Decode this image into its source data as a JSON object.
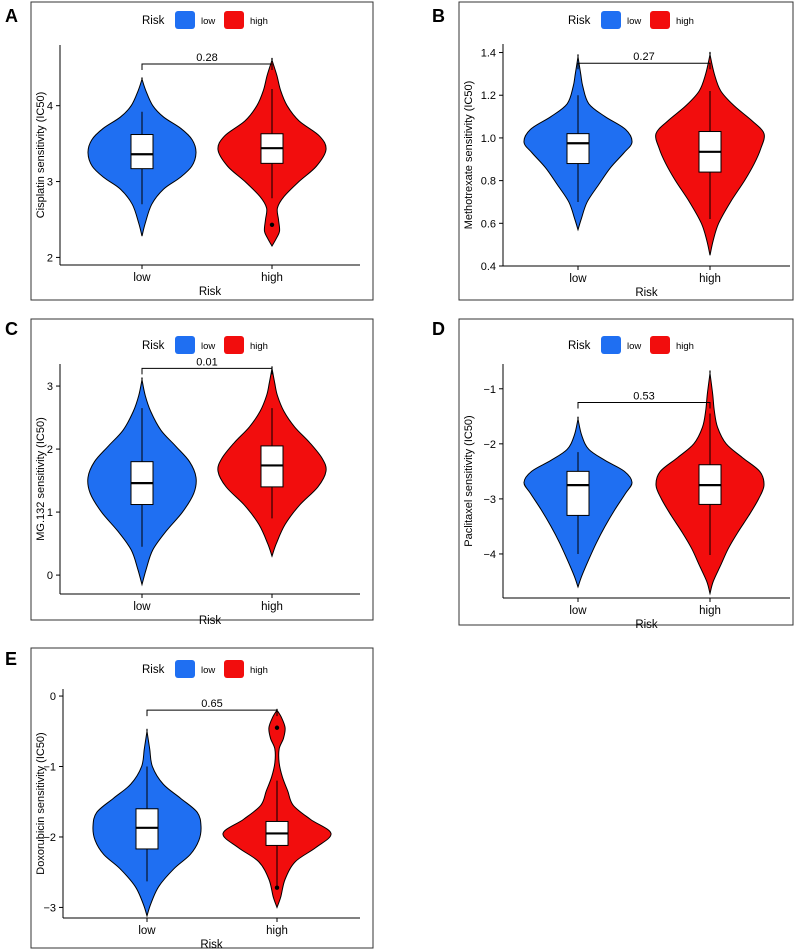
{
  "legend": {
    "title": "Risk",
    "low_label": "low",
    "high_label": "high"
  },
  "colors": {
    "low": "#1f6ff2",
    "high": "#f20d0d",
    "box": "#ffffff",
    "line": "#000000",
    "frame": "#333333"
  },
  "chart_data": [
    {
      "panel_letter": "A",
      "type": "violin",
      "xlabel": "Risk",
      "ylabel": "Cisplatin sensitivity (IC50)",
      "categories": [
        "low",
        "high"
      ],
      "ylim": [
        1.9,
        4.8
      ],
      "yticks": [
        2,
        3,
        4
      ],
      "pvalue": "0.28",
      "bracket_y": 4.55,
      "series": [
        {
          "name": "low",
          "min": 2.28,
          "max": 4.35,
          "q1": 3.17,
          "median": 3.36,
          "q3": 3.62,
          "whisker_low": 2.7,
          "whisker_high": 3.92,
          "outliers": [],
          "density": [
            [
              2.28,
              0
            ],
            [
              2.45,
              0.06
            ],
            [
              2.7,
              0.18
            ],
            [
              2.9,
              0.4
            ],
            [
              3.05,
              0.7
            ],
            [
              3.2,
              0.92
            ],
            [
              3.38,
              1.0
            ],
            [
              3.55,
              0.93
            ],
            [
              3.7,
              0.72
            ],
            [
              3.85,
              0.4
            ],
            [
              4.0,
              0.2
            ],
            [
              4.2,
              0.07
            ],
            [
              4.35,
              0
            ]
          ]
        },
        {
          "name": "high",
          "min": 2.15,
          "max": 4.6,
          "q1": 3.24,
          "median": 3.44,
          "q3": 3.63,
          "whisker_low": 2.78,
          "whisker_high": 4.22,
          "outliers": [
            2.43
          ],
          "density": [
            [
              2.15,
              0
            ],
            [
              2.25,
              0.08
            ],
            [
              2.35,
              0.14
            ],
            [
              2.5,
              0.12
            ],
            [
              2.65,
              0.1
            ],
            [
              2.8,
              0.22
            ],
            [
              3.0,
              0.5
            ],
            [
              3.2,
              0.82
            ],
            [
              3.42,
              1.0
            ],
            [
              3.6,
              0.88
            ],
            [
              3.8,
              0.5
            ],
            [
              4.0,
              0.28
            ],
            [
              4.2,
              0.16
            ],
            [
              4.4,
              0.09
            ],
            [
              4.6,
              0
            ]
          ]
        }
      ]
    },
    {
      "panel_letter": "B",
      "type": "violin",
      "xlabel": "Risk",
      "ylabel": "Methotrexate sensitivity (IC50)",
      "categories": [
        "low",
        "high"
      ],
      "ylim": [
        0.4,
        1.44
      ],
      "yticks": [
        0.4,
        0.6,
        0.8,
        1.0,
        1.2,
        1.4
      ],
      "ytick_labels": [
        "0.4",
        "0.6",
        "0.8",
        "1.0",
        "1.2",
        "1.4"
      ],
      "pvalue": "0.27",
      "bracket_y": 1.35,
      "series": [
        {
          "name": "low",
          "min": 0.57,
          "max": 1.38,
          "q1": 0.88,
          "median": 0.975,
          "q3": 1.02,
          "whisker_low": 0.7,
          "whisker_high": 1.2,
          "outliers": [],
          "density": [
            [
              0.57,
              0
            ],
            [
              0.62,
              0.06
            ],
            [
              0.7,
              0.17
            ],
            [
              0.78,
              0.38
            ],
            [
              0.86,
              0.6
            ],
            [
              0.93,
              0.85
            ],
            [
              0.98,
              1.0
            ],
            [
              1.04,
              0.88
            ],
            [
              1.1,
              0.5
            ],
            [
              1.16,
              0.2
            ],
            [
              1.24,
              0.09
            ],
            [
              1.3,
              0.05
            ],
            [
              1.38,
              0
            ]
          ]
        },
        {
          "name": "high",
          "min": 0.45,
          "max": 1.39,
          "q1": 0.84,
          "median": 0.935,
          "q3": 1.03,
          "whisker_low": 0.62,
          "whisker_high": 1.22,
          "outliers": [],
          "density": [
            [
              0.45,
              0
            ],
            [
              0.52,
              0.06
            ],
            [
              0.6,
              0.16
            ],
            [
              0.7,
              0.38
            ],
            [
              0.8,
              0.64
            ],
            [
              0.88,
              0.82
            ],
            [
              0.95,
              0.94
            ],
            [
              1.02,
              1.0
            ],
            [
              1.08,
              0.78
            ],
            [
              1.15,
              0.45
            ],
            [
              1.22,
              0.2
            ],
            [
              1.3,
              0.08
            ],
            [
              1.39,
              0
            ]
          ]
        }
      ]
    },
    {
      "panel_letter": "C",
      "type": "violin",
      "xlabel": "Risk",
      "ylabel": "MG.132 sensitivity (IC50)",
      "categories": [
        "low",
        "high"
      ],
      "ylim": [
        -0.3,
        3.35
      ],
      "yticks": [
        0,
        1,
        2,
        3
      ],
      "pvalue": "0.01",
      "bracket_y": 3.28,
      "series": [
        {
          "name": "low",
          "min": -0.15,
          "max": 3.1,
          "q1": 1.12,
          "median": 1.46,
          "q3": 1.8,
          "whisker_low": 0.45,
          "whisker_high": 2.65,
          "outliers": [],
          "density": [
            [
              -0.15,
              0
            ],
            [
              0.1,
              0.08
            ],
            [
              0.4,
              0.2
            ],
            [
              0.7,
              0.45
            ],
            [
              1.0,
              0.75
            ],
            [
              1.3,
              0.96
            ],
            [
              1.55,
              1.0
            ],
            [
              1.8,
              0.88
            ],
            [
              2.05,
              0.62
            ],
            [
              2.3,
              0.35
            ],
            [
              2.6,
              0.16
            ],
            [
              2.85,
              0.06
            ],
            [
              3.1,
              0
            ]
          ]
        },
        {
          "name": "high",
          "min": 0.3,
          "max": 3.28,
          "q1": 1.4,
          "median": 1.74,
          "q3": 2.05,
          "whisker_low": 0.9,
          "whisker_high": 2.65,
          "outliers": [],
          "density": [
            [
              0.3,
              0
            ],
            [
              0.5,
              0.08
            ],
            [
              0.8,
              0.24
            ],
            [
              1.1,
              0.5
            ],
            [
              1.4,
              0.85
            ],
            [
              1.65,
              1.0
            ],
            [
              1.85,
              0.93
            ],
            [
              2.1,
              0.7
            ],
            [
              2.35,
              0.42
            ],
            [
              2.6,
              0.22
            ],
            [
              2.85,
              0.1
            ],
            [
              3.05,
              0.05
            ],
            [
              3.28,
              0
            ]
          ]
        }
      ]
    },
    {
      "panel_letter": "D",
      "type": "violin",
      "xlabel": "Risk",
      "ylabel": "Paclitaxel sensitivity (IC50)",
      "categories": [
        "low",
        "high"
      ],
      "ylim": [
        -4.8,
        -0.55
      ],
      "yticks": [
        -4,
        -3,
        -2,
        -1
      ],
      "pvalue": "0.53",
      "bracket_y": -1.25,
      "series": [
        {
          "name": "low",
          "min": -4.6,
          "max": -1.55,
          "q1": -3.3,
          "median": -2.75,
          "q3": -2.5,
          "whisker_low": -4.0,
          "whisker_high": -2.15,
          "outliers": [],
          "density": [
            [
              -4.6,
              0
            ],
            [
              -4.4,
              0.07
            ],
            [
              -4.1,
              0.2
            ],
            [
              -3.8,
              0.34
            ],
            [
              -3.5,
              0.5
            ],
            [
              -3.2,
              0.68
            ],
            [
              -2.9,
              0.88
            ],
            [
              -2.7,
              1.0
            ],
            [
              -2.5,
              0.86
            ],
            [
              -2.3,
              0.5
            ],
            [
              -2.1,
              0.2
            ],
            [
              -1.85,
              0.07
            ],
            [
              -1.55,
              0
            ]
          ]
        },
        {
          "name": "high",
          "min": -4.72,
          "max": -0.72,
          "q1": -3.1,
          "median": -2.75,
          "q3": -2.38,
          "whisker_low": -4.02,
          "whisker_high": -1.45,
          "outliers": [],
          "density": [
            [
              -4.72,
              0
            ],
            [
              -4.5,
              0.06
            ],
            [
              -4.2,
              0.2
            ],
            [
              -3.9,
              0.34
            ],
            [
              -3.6,
              0.52
            ],
            [
              -3.3,
              0.72
            ],
            [
              -3.0,
              0.9
            ],
            [
              -2.75,
              1.0
            ],
            [
              -2.5,
              0.92
            ],
            [
              -2.25,
              0.6
            ],
            [
              -2.0,
              0.3
            ],
            [
              -1.7,
              0.14
            ],
            [
              -1.4,
              0.08
            ],
            [
              -1.1,
              0.05
            ],
            [
              -0.72,
              0
            ]
          ]
        }
      ]
    },
    {
      "panel_letter": "E",
      "type": "violin",
      "xlabel": "Risk",
      "ylabel": "Doxorubicin sensitivity (IC50)",
      "categories": [
        "low",
        "high"
      ],
      "ylim": [
        -3.15,
        0.1
      ],
      "yticks": [
        -3,
        -2,
        -1,
        0
      ],
      "pvalue": "0.65",
      "bracket_y": -0.2,
      "series": [
        {
          "name": "low",
          "min": -3.12,
          "max": -0.5,
          "q1": -2.17,
          "median": -1.87,
          "q3": -1.6,
          "whisker_low": -2.63,
          "whisker_high": -1.0,
          "outliers": [],
          "density": [
            [
              -3.12,
              0
            ],
            [
              -2.95,
              0.07
            ],
            [
              -2.7,
              0.22
            ],
            [
              -2.45,
              0.5
            ],
            [
              -2.25,
              0.8
            ],
            [
              -2.05,
              0.96
            ],
            [
              -1.85,
              1.0
            ],
            [
              -1.65,
              0.93
            ],
            [
              -1.45,
              0.62
            ],
            [
              -1.25,
              0.3
            ],
            [
              -1.0,
              0.1
            ],
            [
              -0.75,
              0.05
            ],
            [
              -0.5,
              0
            ]
          ]
        },
        {
          "name": "high",
          "min": -3.0,
          "max": -0.2,
          "q1": -2.12,
          "median": -1.95,
          "q3": -1.78,
          "whisker_low": -2.7,
          "whisker_high": -1.2,
          "outliers": [
            -0.45,
            -2.72
          ],
          "density": [
            [
              -3.0,
              0
            ],
            [
              -2.85,
              0.07
            ],
            [
              -2.6,
              0.15
            ],
            [
              -2.35,
              0.34
            ],
            [
              -2.15,
              0.72
            ],
            [
              -1.95,
              1.0
            ],
            [
              -1.75,
              0.62
            ],
            [
              -1.55,
              0.3
            ],
            [
              -1.35,
              0.2
            ],
            [
              -1.15,
              0.1
            ],
            [
              -0.95,
              0.04
            ],
            [
              -0.75,
              0.04
            ],
            [
              -0.6,
              0.12
            ],
            [
              -0.45,
              0.15
            ],
            [
              -0.3,
              0.08
            ],
            [
              -0.2,
              0
            ]
          ]
        }
      ]
    }
  ]
}
